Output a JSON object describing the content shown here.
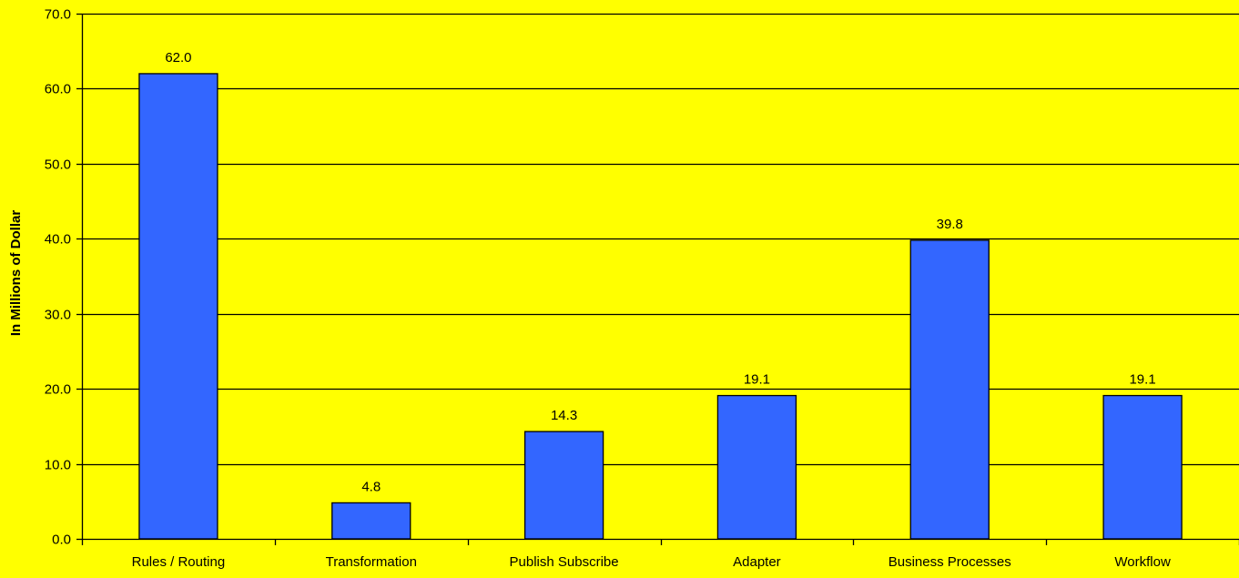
{
  "chart_data": {
    "type": "bar",
    "title": "",
    "xlabel": "",
    "ylabel": "In Millions of Dollar",
    "categories": [
      "Rules / Routing",
      "Transformation",
      "Publish Subscribe",
      "Adapter",
      "Business Processes",
      "Workflow"
    ],
    "values": [
      62.0,
      4.8,
      14.3,
      19.1,
      39.8,
      19.1
    ],
    "data_labels": [
      "62.0",
      "4.8",
      "14.3",
      "19.1",
      "39.8",
      "19.1"
    ],
    "ylim": [
      0,
      70
    ],
    "yticks": [
      "0.0",
      "10.0",
      "20.0",
      "30.0",
      "40.0",
      "50.0",
      "60.0",
      "70.0"
    ],
    "grid": true,
    "legend": "none",
    "colors": {
      "background": "#ffff00",
      "bar": "#3366ff",
      "bar_stroke": "#000000",
      "grid": "#000000"
    }
  }
}
